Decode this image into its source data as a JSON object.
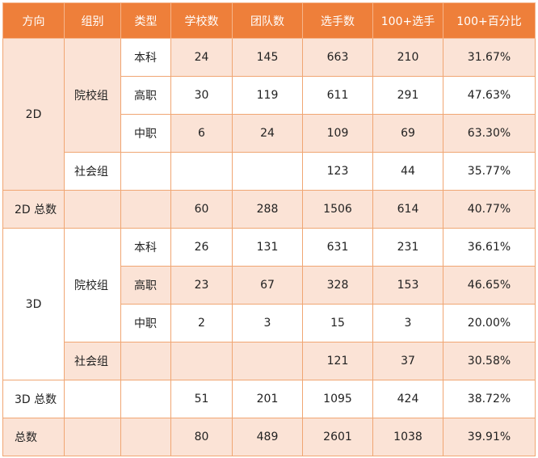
{
  "headers": [
    "方向",
    "组别",
    "类型",
    "学校数",
    "团队数",
    "选手数",
    "100+选手",
    "100+百分比"
  ],
  "sections": {
    "s2d": {
      "direction": "2D",
      "group_school": "院校组",
      "rows": [
        {
          "type": "本科",
          "schools": "24",
          "teams": "145",
          "players": "663",
          "p100": "210",
          "pct": "31.67%"
        },
        {
          "type": "高职",
          "schools": "30",
          "teams": "119",
          "players": "611",
          "p100": "291",
          "pct": "47.63%"
        },
        {
          "type": "中职",
          "schools": "6",
          "teams": "24",
          "players": "109",
          "p100": "69",
          "pct": "63.30%"
        }
      ],
      "social": {
        "group": "社会组",
        "players": "123",
        "p100": "44",
        "pct": "35.77%"
      },
      "total": {
        "label": "2D 总数",
        "schools": "60",
        "teams": "288",
        "players": "1506",
        "p100": "614",
        "pct": "40.77%"
      }
    },
    "s3d": {
      "direction": "3D",
      "group_school": "院校组",
      "rows": [
        {
          "type": "本科",
          "schools": "26",
          "teams": "131",
          "players": "631",
          "p100": "231",
          "pct": "36.61%"
        },
        {
          "type": "高职",
          "schools": "23",
          "teams": "67",
          "players": "328",
          "p100": "153",
          "pct": "46.65%"
        },
        {
          "type": "中职",
          "schools": "2",
          "teams": "3",
          "players": "15",
          "p100": "3",
          "pct": "20.00%"
        }
      ],
      "social": {
        "group": "社会组",
        "players": "121",
        "p100": "37",
        "pct": "30.58%"
      },
      "total": {
        "label": "3D 总数",
        "schools": "51",
        "teams": "201",
        "players": "1095",
        "p100": "424",
        "pct": "38.72%"
      }
    }
  },
  "grand_total": {
    "label": "总数",
    "schools": "80",
    "teams": "489",
    "players": "2601",
    "p100": "1038",
    "pct": "39.91%"
  }
}
